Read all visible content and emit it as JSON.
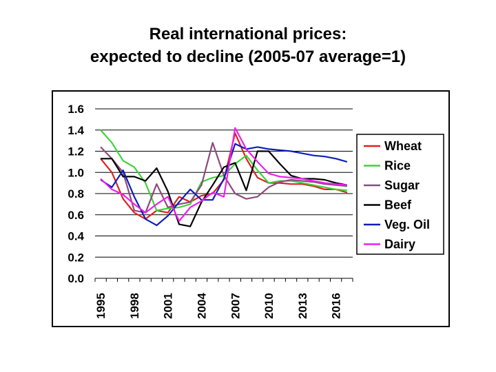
{
  "title": {
    "line1": "Real international prices:",
    "line2": "expected to decline (2005-07 average=1)"
  },
  "chart_data": {
    "type": "line",
    "x": [
      1995,
      1996,
      1997,
      1998,
      1999,
      2000,
      2001,
      2002,
      2003,
      2004,
      2005,
      2006,
      2007,
      2008,
      2009,
      2010,
      2011,
      2012,
      2013,
      2014,
      2015,
      2016,
      2017
    ],
    "x_tick_labels": [
      "1995",
      "1998",
      "2001",
      "2004",
      "2007",
      "2010",
      "2013",
      "2016"
    ],
    "y_tick_labels": [
      "0.0",
      "0.2",
      "0.4",
      "0.6",
      "0.8",
      "1.0",
      "1.2",
      "1.4",
      "1.6"
    ],
    "ylim": [
      0,
      1.6
    ],
    "grid": "horizontal",
    "legend_position": "right",
    "series": [
      {
        "name": "Wheat",
        "color": "#e0201b",
        "values": [
          1.13,
          1.0,
          0.75,
          0.62,
          0.56,
          0.64,
          0.62,
          0.77,
          0.72,
          0.78,
          0.8,
          0.93,
          1.37,
          1.13,
          0.95,
          0.9,
          0.9,
          0.89,
          0.89,
          0.87,
          0.84,
          0.84,
          0.81
        ]
      },
      {
        "name": "Rice",
        "color": "#3ad43a",
        "values": [
          1.4,
          1.28,
          1.11,
          1.05,
          0.9,
          0.64,
          0.66,
          0.67,
          0.7,
          0.91,
          0.95,
          0.97,
          1.08,
          1.16,
          1.02,
          0.9,
          0.92,
          0.92,
          0.9,
          0.88,
          0.86,
          0.84,
          0.83
        ]
      },
      {
        "name": "Sugar",
        "color": "#8c4a7c",
        "values": [
          1.24,
          1.13,
          1.0,
          0.64,
          0.62,
          0.89,
          0.67,
          0.7,
          0.72,
          0.88,
          1.28,
          0.97,
          0.8,
          0.75,
          0.77,
          0.86,
          0.91,
          0.93,
          0.92,
          0.91,
          0.89,
          0.88,
          0.87
        ]
      },
      {
        "name": "Beef",
        "color": "#000000",
        "values": [
          1.13,
          1.13,
          0.96,
          0.96,
          0.92,
          1.04,
          0.82,
          0.51,
          0.49,
          0.72,
          0.88,
          1.05,
          1.09,
          0.83,
          1.2,
          1.2,
          1.08,
          0.97,
          0.94,
          0.94,
          0.93,
          0.9,
          0.88
        ]
      },
      {
        "name": "Veg. Oil",
        "color": "#0c1eb8",
        "values": [
          0.93,
          0.86,
          1.02,
          0.77,
          0.56,
          0.5,
          0.59,
          0.72,
          0.84,
          0.74,
          0.74,
          0.94,
          1.27,
          1.22,
          1.24,
          1.22,
          1.21,
          1.2,
          1.18,
          1.16,
          1.15,
          1.13,
          1.1
        ]
      },
      {
        "name": "Dairy",
        "color": "#f01ef0",
        "values": [
          0.94,
          0.84,
          0.79,
          0.7,
          0.62,
          0.7,
          0.77,
          0.54,
          0.67,
          0.73,
          0.81,
          0.77,
          1.42,
          1.22,
          1.1,
          0.99,
          0.96,
          0.95,
          0.94,
          0.92,
          0.9,
          0.89,
          0.88
        ]
      }
    ]
  }
}
